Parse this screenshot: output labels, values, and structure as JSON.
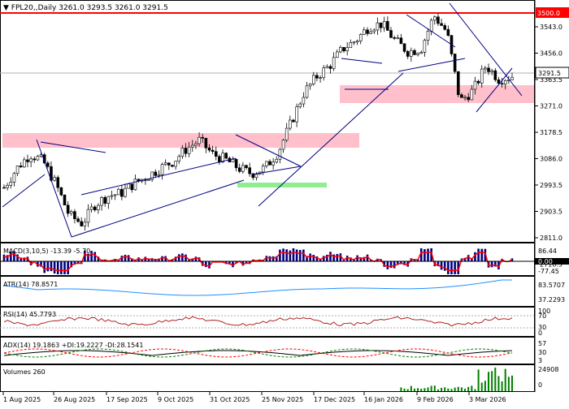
{
  "header": {
    "title": "FPL20,,Daily",
    "ohlc": "3261.0 3293.5 3261.0 3291.5"
  },
  "price_axis": {
    "ticks": [
      "3543.0",
      "3456.0",
      "3363.5",
      "3271.0",
      "3178.5",
      "3086.0",
      "2993.5",
      "2903.5",
      "2811.0",
      "2718.5"
    ],
    "level_label": "3500.0",
    "current_label": "3291.5"
  },
  "macd": {
    "label": "MACD(3,10,5) -13.39 -5.70",
    "ticks": [
      "86.44",
      "0.00",
      "-77.45"
    ]
  },
  "atr": {
    "label": "ATR(14) 78.8571",
    "ticks": [
      "83.5707",
      "37.2293"
    ]
  },
  "rsi": {
    "label": "RSI(14) 45.7793",
    "ticks": [
      "100",
      "70",
      "30",
      "0"
    ]
  },
  "adx": {
    "label": "ADX(14) 19.1863 +DI:19.2227 -DI:28.1541",
    "ticks": [
      "57",
      "30",
      "3"
    ]
  },
  "volumes": {
    "label": "Volumes 260",
    "ticks": [
      "24908",
      "0"
    ]
  },
  "date_axis": [
    "1 Aug 2025",
    "26 Aug 2025",
    "17 Sep 2025",
    "9 Oct 2025",
    "31 Oct 2025",
    "25 Nov 2025",
    "17 Dec 2025",
    "16 Jan 2026",
    "9 Feb 2026",
    "3 Mar 2026"
  ],
  "colors": {
    "bull": "#008000",
    "line": "#000080",
    "level": "#ff0000",
    "support_zone": "#ffc0cb",
    "green_zone": "#90ee90"
  },
  "chart_data": {
    "type": "candlestick",
    "title": "FPL20,,Daily",
    "ylim": [
      2700,
      3560
    ],
    "x": [
      "1 Aug 2025",
      "26 Aug 2025",
      "17 Sep 2025",
      "9 Oct 2025",
      "31 Oct 2025",
      "25 Nov 2025",
      "17 Dec 2025",
      "16 Jan 2026",
      "9 Feb 2026",
      "3 Mar 2026"
    ],
    "close_path": [
      2890,
      2960,
      3010,
      2985,
      2900,
      2790,
      2760,
      2830,
      2860,
      2870,
      2905,
      2930,
      2960,
      2985,
      3030,
      3060,
      3010,
      2990,
      2960,
      2940,
      2960,
      3015,
      3120,
      3230,
      3290,
      3330,
      3390,
      3420,
      3470,
      3480,
      3420,
      3380,
      3390,
      3510,
      3450,
      3200,
      3240,
      3330,
      3280,
      3291.5
    ],
    "horizontal_level": 3500.0,
    "current_price": 3291.5
  }
}
